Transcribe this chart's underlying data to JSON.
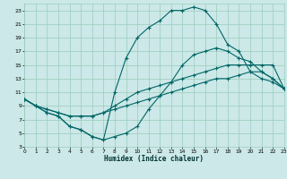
{
  "xlabel": "Humidex (Indice chaleur)",
  "bg_color": "#cce8e8",
  "grid_color": "#99ccbb",
  "line_color": "#006666",
  "xlim": [
    0,
    23
  ],
  "ylim": [
    3,
    24
  ],
  "xticks": [
    0,
    1,
    2,
    3,
    4,
    5,
    6,
    7,
    8,
    9,
    10,
    11,
    12,
    13,
    14,
    15,
    16,
    17,
    18,
    19,
    20,
    21,
    22,
    23
  ],
  "yticks": [
    3,
    5,
    7,
    9,
    11,
    13,
    15,
    17,
    19,
    21,
    23
  ],
  "curve_spike_x": [
    0,
    1,
    2,
    3,
    4,
    5,
    6,
    7,
    8,
    9,
    10,
    11,
    12,
    13,
    14,
    15,
    16,
    17,
    18,
    19,
    20,
    21,
    22,
    23
  ],
  "curve_spike_y": [
    10,
    9,
    8,
    7.5,
    6,
    5.5,
    4.5,
    4,
    11,
    16,
    19,
    20.5,
    21.5,
    23,
    23,
    23.5,
    23,
    21,
    18,
    17,
    14,
    13,
    12.5,
    11.5
  ],
  "curve_high_x": [
    0,
    1,
    2,
    3,
    4,
    5,
    6,
    7,
    8,
    9,
    10,
    11,
    12,
    13,
    14,
    15,
    16,
    17,
    18,
    19,
    20,
    21,
    22,
    23
  ],
  "curve_high_y": [
    10,
    9,
    8,
    7.5,
    6,
    5.5,
    4.5,
    4,
    4.5,
    5,
    6,
    8.5,
    10.5,
    12.5,
    15,
    16.5,
    17,
    17.5,
    17,
    16,
    15.5,
    14,
    13,
    11.5
  ],
  "curve_mid_x": [
    0,
    1,
    2,
    3,
    4,
    5,
    6,
    7,
    8,
    9,
    10,
    11,
    12,
    13,
    14,
    15,
    16,
    17,
    18,
    19,
    20,
    21,
    22,
    23
  ],
  "curve_mid_y": [
    10,
    9,
    8.5,
    8,
    7.5,
    7.5,
    7.5,
    8,
    9,
    10,
    11,
    11.5,
    12,
    12.5,
    13,
    13.5,
    14,
    14.5,
    15,
    15,
    15,
    15,
    15,
    11.5
  ],
  "curve_low_x": [
    0,
    1,
    2,
    3,
    4,
    5,
    6,
    7,
    8,
    9,
    10,
    11,
    12,
    13,
    14,
    15,
    16,
    17,
    18,
    19,
    20,
    21,
    22,
    23
  ],
  "curve_low_y": [
    10,
    9,
    8.5,
    8,
    7.5,
    7.5,
    7.5,
    8,
    8.5,
    9,
    9.5,
    10,
    10.5,
    11,
    11.5,
    12,
    12.5,
    13,
    13,
    13.5,
    14,
    14,
    13,
    11.5
  ]
}
